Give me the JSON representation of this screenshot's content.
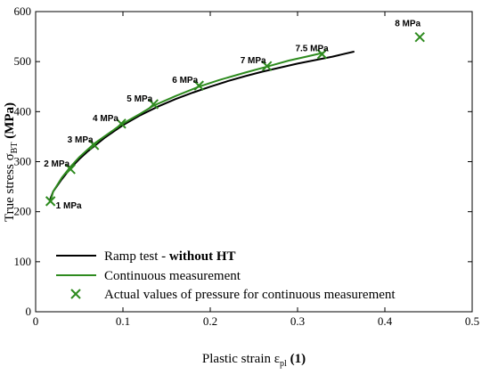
{
  "chart_data": {
    "type": "line",
    "xlabel": {
      "main": "Plastic strain ε",
      "sub": "pl",
      "unit": "(1)"
    },
    "ylabel": {
      "main": "True stress σ",
      "sub": "BT",
      "unit": "(MPa)"
    },
    "xlim": [
      0,
      0.5
    ],
    "ylim": [
      0,
      600
    ],
    "xticks": [
      0,
      0.1,
      0.2,
      0.3,
      0.4,
      0.5
    ],
    "xtick_labels": [
      "0",
      "0.1",
      "0.2",
      "0.3",
      "0.4",
      "0.5"
    ],
    "yticks": [
      0,
      100,
      200,
      300,
      400,
      500,
      600
    ],
    "ytick_labels": [
      "0",
      "100",
      "200",
      "300",
      "400",
      "500",
      "600"
    ],
    "grid": false,
    "legend_position": "bottom-left",
    "series": [
      {
        "name": "Ramp test - ",
        "name_bold": "without HT",
        "kind": "line",
        "color": "#000000",
        "x": [
          0.016,
          0.02,
          0.03,
          0.04,
          0.05,
          0.06,
          0.08,
          0.1,
          0.12,
          0.14,
          0.16,
          0.18,
          0.2,
          0.22,
          0.24,
          0.26,
          0.28,
          0.3,
          0.32,
          0.34,
          0.365
        ],
        "y": [
          222,
          240,
          265,
          287,
          305,
          321,
          349,
          373,
          393,
          410,
          425,
          438,
          450,
          461,
          471,
          480,
          488,
          496,
          503,
          510,
          520
        ]
      },
      {
        "name": "Continuous measurement",
        "kind": "line",
        "color": "#2e8b1f",
        "x": [
          0.017,
          0.02,
          0.03,
          0.04,
          0.05,
          0.067,
          0.08,
          0.098,
          0.12,
          0.135,
          0.16,
          0.187,
          0.21,
          0.24,
          0.265,
          0.29,
          0.31,
          0.33
        ],
        "y": [
          221,
          240,
          268,
          290,
          309,
          336,
          352,
          374,
          396,
          412,
          431,
          450,
          463,
          478,
          490,
          502,
          510,
          518
        ]
      },
      {
        "name": "Actual values of pressure for continuous measurement",
        "kind": "scatter",
        "marker": "x",
        "color": "#2e8b1f",
        "x": [
          0.017,
          0.04,
          0.067,
          0.098,
          0.135,
          0.187,
          0.265,
          0.328,
          0.44
        ],
        "y": [
          221,
          285,
          333,
          376,
          415,
          452,
          491,
          515,
          549
        ],
        "labels": [
          "1 MPa",
          "2 MPa",
          "3 MPa",
          "4 MPa",
          "5 MPa",
          "6 MPa",
          "7 MPa",
          "7.5 MPa",
          "8 MPa"
        ]
      }
    ]
  }
}
